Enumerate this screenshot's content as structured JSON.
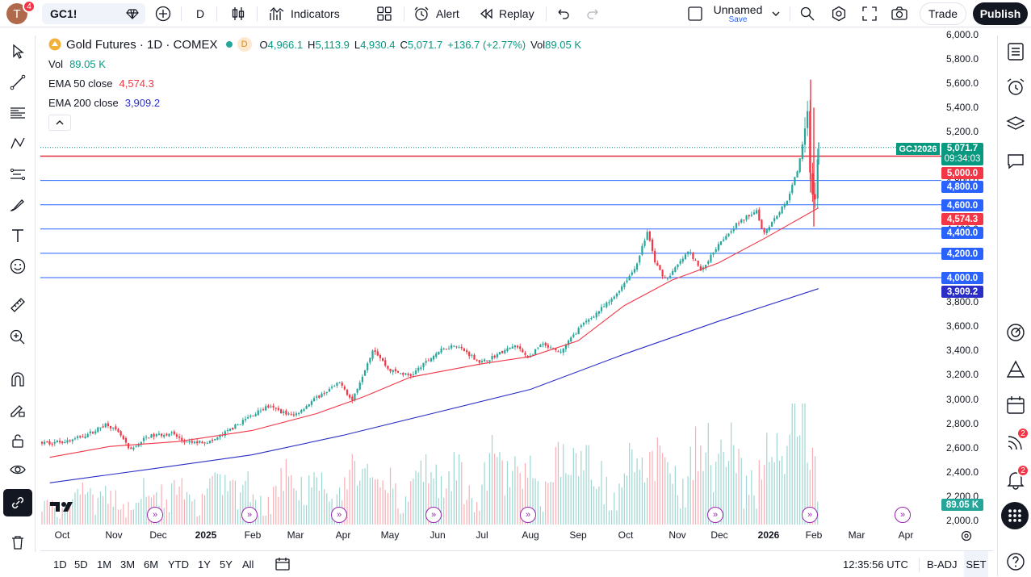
{
  "topbar": {
    "avatar_letter": "T",
    "avatar_badge": "4",
    "symbol": "GC1!",
    "interval": "D",
    "indicators_label": "Indicators",
    "alert_label": "Alert",
    "replay_label": "Replay",
    "layout_name": "Unnamed",
    "layout_save": "Save",
    "trade_label": "Trade",
    "publish_label": "Publish"
  },
  "legend": {
    "title": "Gold Futures · 1D · COMEX",
    "d_badge": "D",
    "o_label": "O",
    "o_value": "4,966.1",
    "h_label": "H",
    "h_value": "5,113.9",
    "l_label": "L",
    "l_value": "4,930.4",
    "c_label": "C",
    "c_value": "5,071.7",
    "change": "+136.7 (+2.77%)",
    "vol_label": "Vol",
    "vol_value": "89.05 K",
    "vol_row_label": "Vol",
    "vol_row_value": "89.05 K",
    "ema50_label": "EMA 50 close",
    "ema50_value": "4,574.3",
    "ema200_label": "EMA 200 close",
    "ema200_value": "3,909.2"
  },
  "price_scale": [
    "6,000.0",
    "5,800.0",
    "5,600.0",
    "5,400.0",
    "5,200.0",
    "5,000.0",
    "4,800.0",
    "4,600.0",
    "4,400.0",
    "4,200.0",
    "4,000.0",
    "3,800.0",
    "3,600.0",
    "3,400.0",
    "3,200.0",
    "3,000.0",
    "2,800.0",
    "2,600.0",
    "2,400.0",
    "2,200.0",
    "2,000.0"
  ],
  "price_tags": {
    "symbol_tag": "GCJ2026",
    "last": "5,071.7",
    "countdown": "09:34:03",
    "level_5000": "5,000.0",
    "level_4800": "4,800.0",
    "level_4600": "4,600.0",
    "ema50": "4,574.3",
    "level_4400": "4,400.0",
    "level_4200": "4,200.0",
    "level_4000": "4,000.0",
    "ema200": "3,909.2",
    "volume": "89.05 K"
  },
  "time_scale": [
    "Oct",
    "Nov",
    "Dec",
    "2025",
    "Feb",
    "Mar",
    "Apr",
    "May",
    "Jun",
    "Jul",
    "Aug",
    "Sep",
    "Oct",
    "Nov",
    "Dec",
    "2026",
    "Feb",
    "Mar",
    "Apr"
  ],
  "bottombar": {
    "ranges": [
      "1D",
      "5D",
      "1M",
      "3M",
      "6M",
      "YTD",
      "1Y",
      "5Y",
      "All"
    ],
    "clock": "12:35:56 UTC",
    "adj": "B-ADJ",
    "session": "SET"
  },
  "right_badges": {
    "ideas": "2",
    "alerts": "2"
  },
  "colors": {
    "up": "#26a69a",
    "down": "#f23645",
    "ema50": "#f23645",
    "ema200": "#2a2ec6",
    "hline": "#2962ff",
    "accent_line": "#e0313f"
  },
  "chart_data": {
    "type": "candlestick",
    "title": "Gold Futures · 1D · COMEX",
    "ylim": [
      2000,
      6000
    ],
    "horizontal_levels": [
      5000,
      4800,
      4600,
      4400,
      4200,
      4000
    ],
    "last_price": 5071.7,
    "ema50_last": 4574.3,
    "ema200_last": 3909.2,
    "close_path": [
      [
        "2024-09-23",
        2640
      ],
      [
        "2024-10-07",
        2660
      ],
      [
        "2024-10-21",
        2730
      ],
      [
        "2024-10-30",
        2800
      ],
      [
        "2024-11-08",
        2700
      ],
      [
        "2024-11-14",
        2570
      ],
      [
        "2024-11-25",
        2690
      ],
      [
        "2024-12-11",
        2720
      ],
      [
        "2024-12-20",
        2640
      ],
      [
        "2025-01-06",
        2650
      ],
      [
        "2025-01-17",
        2740
      ],
      [
        "2025-01-30",
        2850
      ],
      [
        "2025-02-11",
        2940
      ],
      [
        "2025-02-28",
        2860
      ],
      [
        "2025-03-14",
        3000
      ],
      [
        "2025-03-31",
        3140
      ],
      [
        "2025-04-07",
        2980
      ],
      [
        "2025-04-21",
        3420
      ],
      [
        "2025-05-01",
        3240
      ],
      [
        "2025-05-15",
        3190
      ],
      [
        "2025-06-02",
        3390
      ],
      [
        "2025-06-13",
        3450
      ],
      [
        "2025-06-30",
        3300
      ],
      [
        "2025-07-22",
        3440
      ],
      [
        "2025-07-31",
        3340
      ],
      [
        "2025-08-08",
        3450
      ],
      [
        "2025-08-20",
        3380
      ],
      [
        "2025-09-02",
        3590
      ],
      [
        "2025-09-23",
        3820
      ],
      [
        "2025-10-08",
        4080
      ],
      [
        "2025-10-16",
        4380
      ],
      [
        "2025-10-21",
        4120
      ],
      [
        "2025-10-28",
        3980
      ],
      [
        "2025-11-12",
        4220
      ],
      [
        "2025-11-20",
        4050
      ],
      [
        "2025-12-01",
        4280
      ],
      [
        "2025-12-12",
        4430
      ],
      [
        "2025-12-26",
        4560
      ],
      [
        "2025-12-30",
        4360
      ],
      [
        "2026-01-14",
        4620
      ],
      [
        "2026-01-22",
        4900
      ],
      [
        "2026-01-28",
        5380
      ],
      [
        "2026-01-30",
        4700
      ],
      [
        "2026-02-02",
        4650
      ],
      [
        "2026-02-04",
        5071.7
      ]
    ],
    "ema50": [
      [
        "2024-09-23",
        2520
      ],
      [
        "2024-11-01",
        2610
      ],
      [
        "2024-12-15",
        2650
      ],
      [
        "2025-02-01",
        2740
      ],
      [
        "2025-03-15",
        2880
      ],
      [
        "2025-04-15",
        3020
      ],
      [
        "2025-05-15",
        3180
      ],
      [
        "2025-06-30",
        3290
      ],
      [
        "2025-08-01",
        3350
      ],
      [
        "2025-09-01",
        3480
      ],
      [
        "2025-10-01",
        3770
      ],
      [
        "2025-11-01",
        3980
      ],
      [
        "2025-12-01",
        4120
      ],
      [
        "2026-01-01",
        4330
      ],
      [
        "2026-02-04",
        4574.3
      ]
    ],
    "ema200": [
      [
        "2024-09-23",
        2310
      ],
      [
        "2024-12-01",
        2430
      ],
      [
        "2025-02-01",
        2540
      ],
      [
        "2025-04-01",
        2700
      ],
      [
        "2025-06-01",
        2890
      ],
      [
        "2025-08-01",
        3080
      ],
      [
        "2025-10-01",
        3370
      ],
      [
        "2025-12-01",
        3640
      ],
      [
        "2026-02-04",
        3909.2
      ]
    ]
  }
}
